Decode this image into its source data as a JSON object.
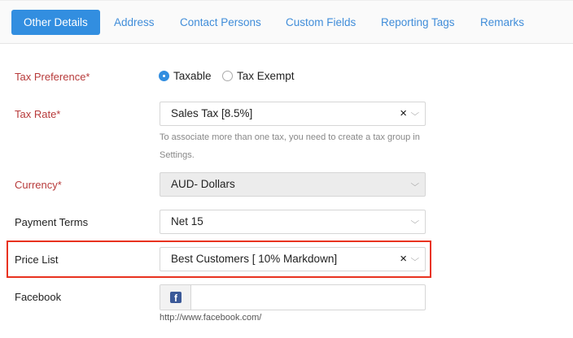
{
  "tabs": [
    {
      "label": "Other Details",
      "active": true
    },
    {
      "label": "Address"
    },
    {
      "label": "Contact Persons"
    },
    {
      "label": "Custom Fields"
    },
    {
      "label": "Reporting Tags"
    },
    {
      "label": "Remarks"
    }
  ],
  "form": {
    "tax_preference": {
      "label": "Tax Preference*",
      "options": [
        "Taxable",
        "Tax Exempt"
      ],
      "selected": "Taxable"
    },
    "tax_rate": {
      "label": "Tax Rate*",
      "value": "Sales Tax [8.5%]",
      "help": "To associate more than one tax, you need to create a tax group in Settings."
    },
    "currency": {
      "label": "Currency*",
      "value": "AUD- Dollars"
    },
    "payment_terms": {
      "label": "Payment Terms",
      "value": "Net 15"
    },
    "price_list": {
      "label": "Price List",
      "value": "Best Customers [ 10% Markdown]"
    },
    "facebook": {
      "label": "Facebook",
      "value": "",
      "prefix": "http://www.facebook.com/"
    }
  },
  "icons": {
    "clear": "×",
    "chevron": "⌵",
    "facebook": "f"
  },
  "colors": {
    "accent": "#328ee0",
    "required": "#b73a3a",
    "highlight": "#e8321f"
  }
}
